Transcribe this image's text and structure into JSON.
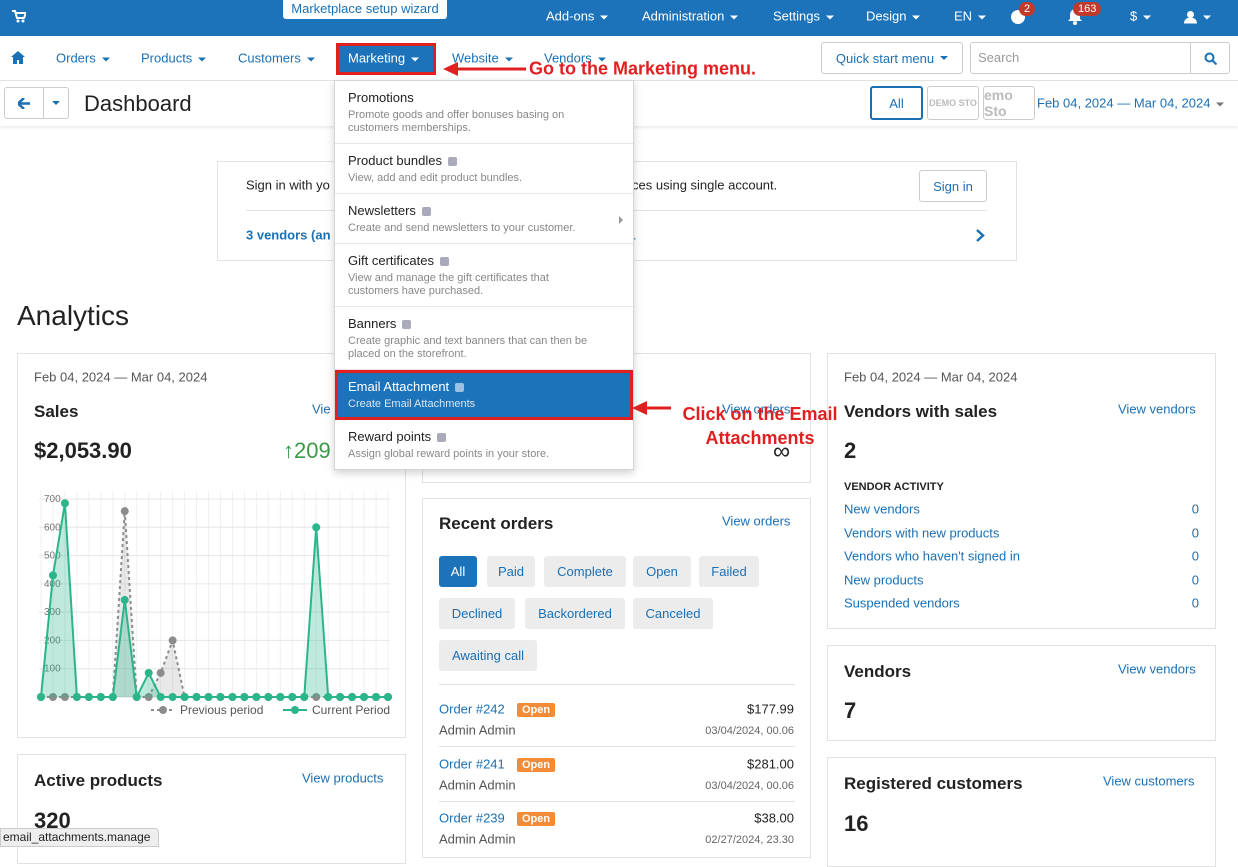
{
  "top_bar": {
    "setup_wizard": "Marketplace setup wizard",
    "menus": [
      "Add-ons",
      "Administration",
      "Settings",
      "Design",
      "EN"
    ],
    "help_badge": "2",
    "notifications_badge": "163",
    "currency": "$"
  },
  "nav": {
    "items": [
      "Orders",
      "Products",
      "Customers",
      "Marketing",
      "Website",
      "Vendors"
    ],
    "quick_start": "Quick start menu",
    "search_placeholder": "Search"
  },
  "header": {
    "title": "Dashboard",
    "storefront_all": "All",
    "storefront_logo": "DEMO STO",
    "storefront_partial": "emo Sto",
    "period": "Feb 04, 2024 — Mar 04, 2024"
  },
  "banner": {
    "text_start": "Sign in with yo",
    "text_end": "ces using single account.",
    "sign_in": "Sign in",
    "vendors_start": "3 vendors (an",
    "vendors_end": "."
  },
  "analytics": {
    "heading": "Analytics"
  },
  "sales_card": {
    "period": "Feb 04, 2024 — Mar 04, 2024",
    "title": "Sales",
    "link": "Vie",
    "total": "$2,053.90",
    "change": "↑209"
  },
  "sales_chart": {
    "type": "line",
    "ylim": [
      0,
      700
    ],
    "yticks": [
      100,
      200,
      300,
      400,
      500,
      600,
      700
    ],
    "grid": true,
    "series": [
      {
        "name": "Previous period",
        "color": "#8c8c8c",
        "values": [
          0,
          0,
          0,
          0,
          0,
          0,
          0,
          657,
          0,
          0,
          85,
          200,
          0,
          0,
          0,
          0,
          0,
          0,
          0,
          0,
          0,
          0,
          0,
          0,
          0,
          0,
          0,
          0,
          0,
          0
        ]
      },
      {
        "name": "Current Period",
        "color": "#2bb58a",
        "values": [
          0,
          430,
          685,
          0,
          0,
          0,
          0,
          343,
          0,
          85,
          0,
          0,
          0,
          0,
          0,
          0,
          0,
          0,
          0,
          0,
          0,
          0,
          0,
          600,
          0,
          0,
          0,
          0,
          0,
          0
        ]
      }
    ]
  },
  "orders_card_partial": {
    "link": "View orders",
    "value": "∞"
  },
  "vendors_sales_card": {
    "period": "Feb 04, 2024 — Mar 04, 2024",
    "title": "Vendors with sales",
    "link": "View vendors",
    "value": "2",
    "activity_heading": "VENDOR ACTIVITY",
    "activity": [
      {
        "label": "New vendors",
        "count": "0"
      },
      {
        "label": "Vendors with new products",
        "count": "0"
      },
      {
        "label": "Vendors who haven't signed in",
        "count": "0"
      },
      {
        "label": "New products",
        "count": "0"
      },
      {
        "label": "Suspended vendors",
        "count": "0"
      }
    ]
  },
  "recent_orders": {
    "title": "Recent orders",
    "link": "View orders",
    "filters": [
      "All",
      "Paid",
      "Complete",
      "Open",
      "Failed",
      "Declined",
      "Backordered",
      "Canceled",
      "Awaiting call"
    ],
    "orders": [
      {
        "number": "Order #242",
        "status": "Open",
        "total": "$177.99",
        "customer": "Admin Admin",
        "date": "03/04/2024, 00.06"
      },
      {
        "number": "Order #241",
        "status": "Open",
        "total": "$281.00",
        "customer": "Admin Admin",
        "date": "03/04/2024, 00.06"
      },
      {
        "number": "Order #239",
        "status": "Open",
        "total": "$38.00",
        "customer": "Admin Admin",
        "date": "02/27/2024, 23.30"
      }
    ]
  },
  "active_products": {
    "title": "Active products",
    "link": "View products",
    "value": "320"
  },
  "vendors_card": {
    "title": "Vendors",
    "link": "View vendors",
    "value": "7"
  },
  "customers_card": {
    "title": "Registered customers",
    "link": "View customers",
    "value": "16"
  },
  "marketing_menu": {
    "items": [
      {
        "title": "Promotions",
        "description": "Promote goods and offer bonuses basing on customers memberships."
      },
      {
        "title": "Product bundles",
        "description": "View, add and edit product bundles."
      },
      {
        "title": "Newsletters",
        "description": "Create and send newsletters to your customer."
      },
      {
        "title": "Gift certificates",
        "description": "View and manage the gift certificates that customers have purchased."
      },
      {
        "title": "Banners",
        "description": "Create graphic and text banners that can then be placed on the storefront."
      },
      {
        "title": "Email Attachment",
        "description": "Create Email Attachments"
      },
      {
        "title": "Reward points",
        "description": "Assign global reward points in your store."
      }
    ]
  },
  "annotations": [
    "Go to the Marketing menu.",
    "Click on the Email Attachments"
  ],
  "status_bar": "email_attachments.manage"
}
